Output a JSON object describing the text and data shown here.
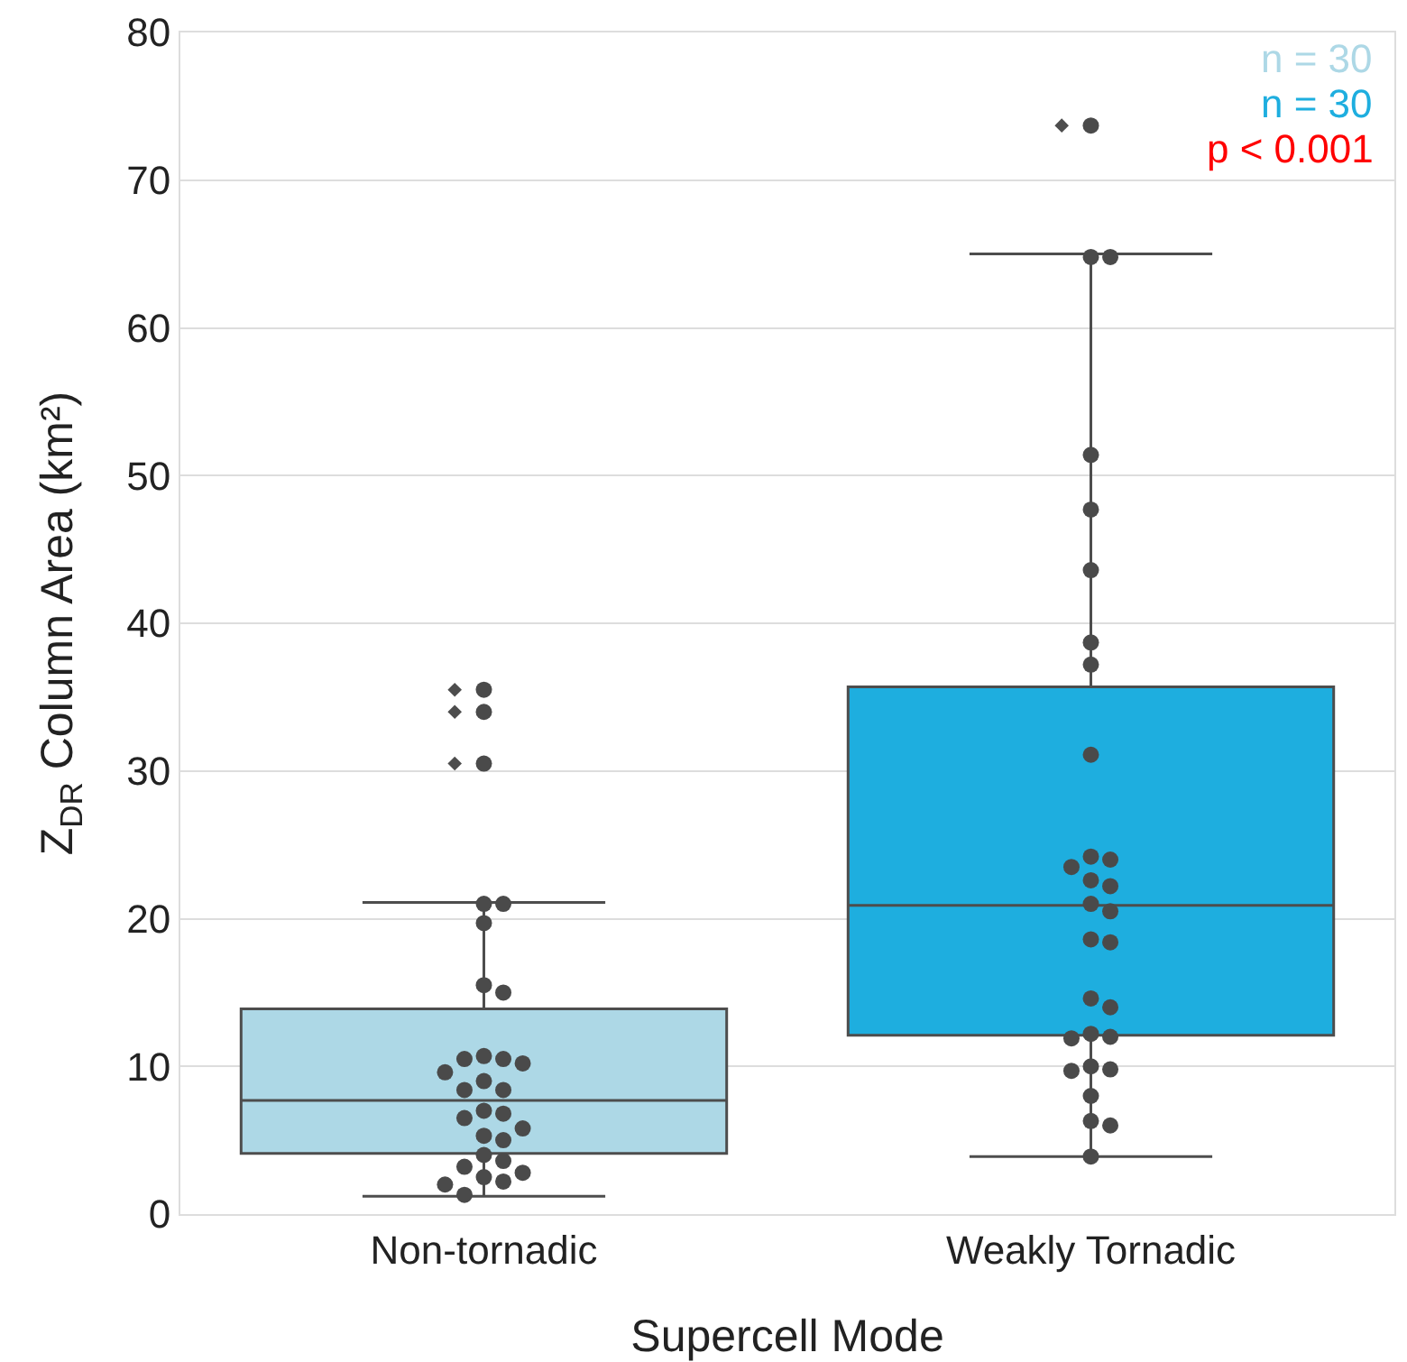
{
  "chart_data": {
    "type": "box",
    "xlabel": "Supercell Mode",
    "ylabel": "Z$_{DR}$ Column Area (km²)",
    "categories": [
      "Non-tornadic",
      "Weakly Tornadic"
    ],
    "colors": [
      "#add8e6",
      "#1eaedf"
    ],
    "boxes": [
      {
        "low": 1.2,
        "q1": 4.1,
        "median": 7.7,
        "q3": 13.9,
        "high": 21.1,
        "outliers": [
          30.5,
          34,
          35.5
        ]
      },
      {
        "low": 3.9,
        "q1": 12.1,
        "median": 20.9,
        "q3": 35.7,
        "high": 65,
        "outliers": [
          73.7
        ]
      }
    ],
    "series": [
      {
        "type": "scatter",
        "color": "#4a4a4a",
        "x": [
          "Non-tornadic",
          "Non-tornadic",
          "Non-tornadic",
          "Non-tornadic",
          "Non-tornadic",
          "Non-tornadic",
          "Non-tornadic",
          "Non-tornadic",
          "Non-tornadic",
          "Non-tornadic",
          "Non-tornadic",
          "Non-tornadic",
          "Non-tornadic",
          "Non-tornadic",
          "Non-tornadic",
          "Non-tornadic",
          "Non-tornadic",
          "Non-tornadic",
          "Non-tornadic",
          "Non-tornadic",
          "Non-tornadic",
          "Non-tornadic",
          "Non-tornadic",
          "Non-tornadic",
          "Non-tornadic",
          "Non-tornadic",
          "Non-tornadic",
          "Non-tornadic",
          "Non-tornadic",
          "Non-tornadic",
          "Weakly Tornadic",
          "Weakly Tornadic",
          "Weakly Tornadic",
          "Weakly Tornadic",
          "Weakly Tornadic",
          "Weakly Tornadic",
          "Weakly Tornadic",
          "Weakly Tornadic",
          "Weakly Tornadic",
          "Weakly Tornadic",
          "Weakly Tornadic",
          "Weakly Tornadic",
          "Weakly Tornadic",
          "Weakly Tornadic",
          "Weakly Tornadic",
          "Weakly Tornadic",
          "Weakly Tornadic",
          "Weakly Tornadic",
          "Weakly Tornadic",
          "Weakly Tornadic",
          "Weakly Tornadic",
          "Weakly Tornadic",
          "Weakly Tornadic",
          "Weakly Tornadic",
          "Weakly Tornadic",
          "Weakly Tornadic",
          "Weakly Tornadic",
          "Weakly Tornadic",
          "Weakly Tornadic",
          "Weakly Tornadic"
        ],
        "values": [
          35.5,
          34.0,
          30.5,
          21.0,
          21.0,
          19.7,
          15.5,
          15.0,
          10.7,
          10.5,
          10.5,
          10.2,
          9.6,
          9.0,
          8.4,
          8.4,
          7.0,
          6.8,
          6.5,
          5.8,
          5.3,
          5.0,
          4.0,
          3.6,
          3.2,
          2.8,
          2.5,
          2.2,
          2.0,
          1.3,
          73.7,
          64.8,
          64.8,
          51.4,
          47.7,
          43.6,
          38.7,
          37.2,
          31.1,
          24.2,
          24.0,
          23.5,
          22.6,
          22.2,
          21.0,
          20.5,
          18.6,
          18.4,
          14.6,
          14.0,
          12.2,
          12.0,
          11.9,
          10.0,
          9.8,
          9.7,
          8.0,
          6.3,
          6.0,
          3.9
        ]
      }
    ],
    "ylim": [
      0,
      80
    ],
    "yticks": [
      0,
      10,
      20,
      30,
      40,
      50,
      60,
      70,
      80
    ],
    "grid": "y",
    "annotations": [
      "n = 30",
      "n = 30",
      "p < 0.001"
    ]
  }
}
